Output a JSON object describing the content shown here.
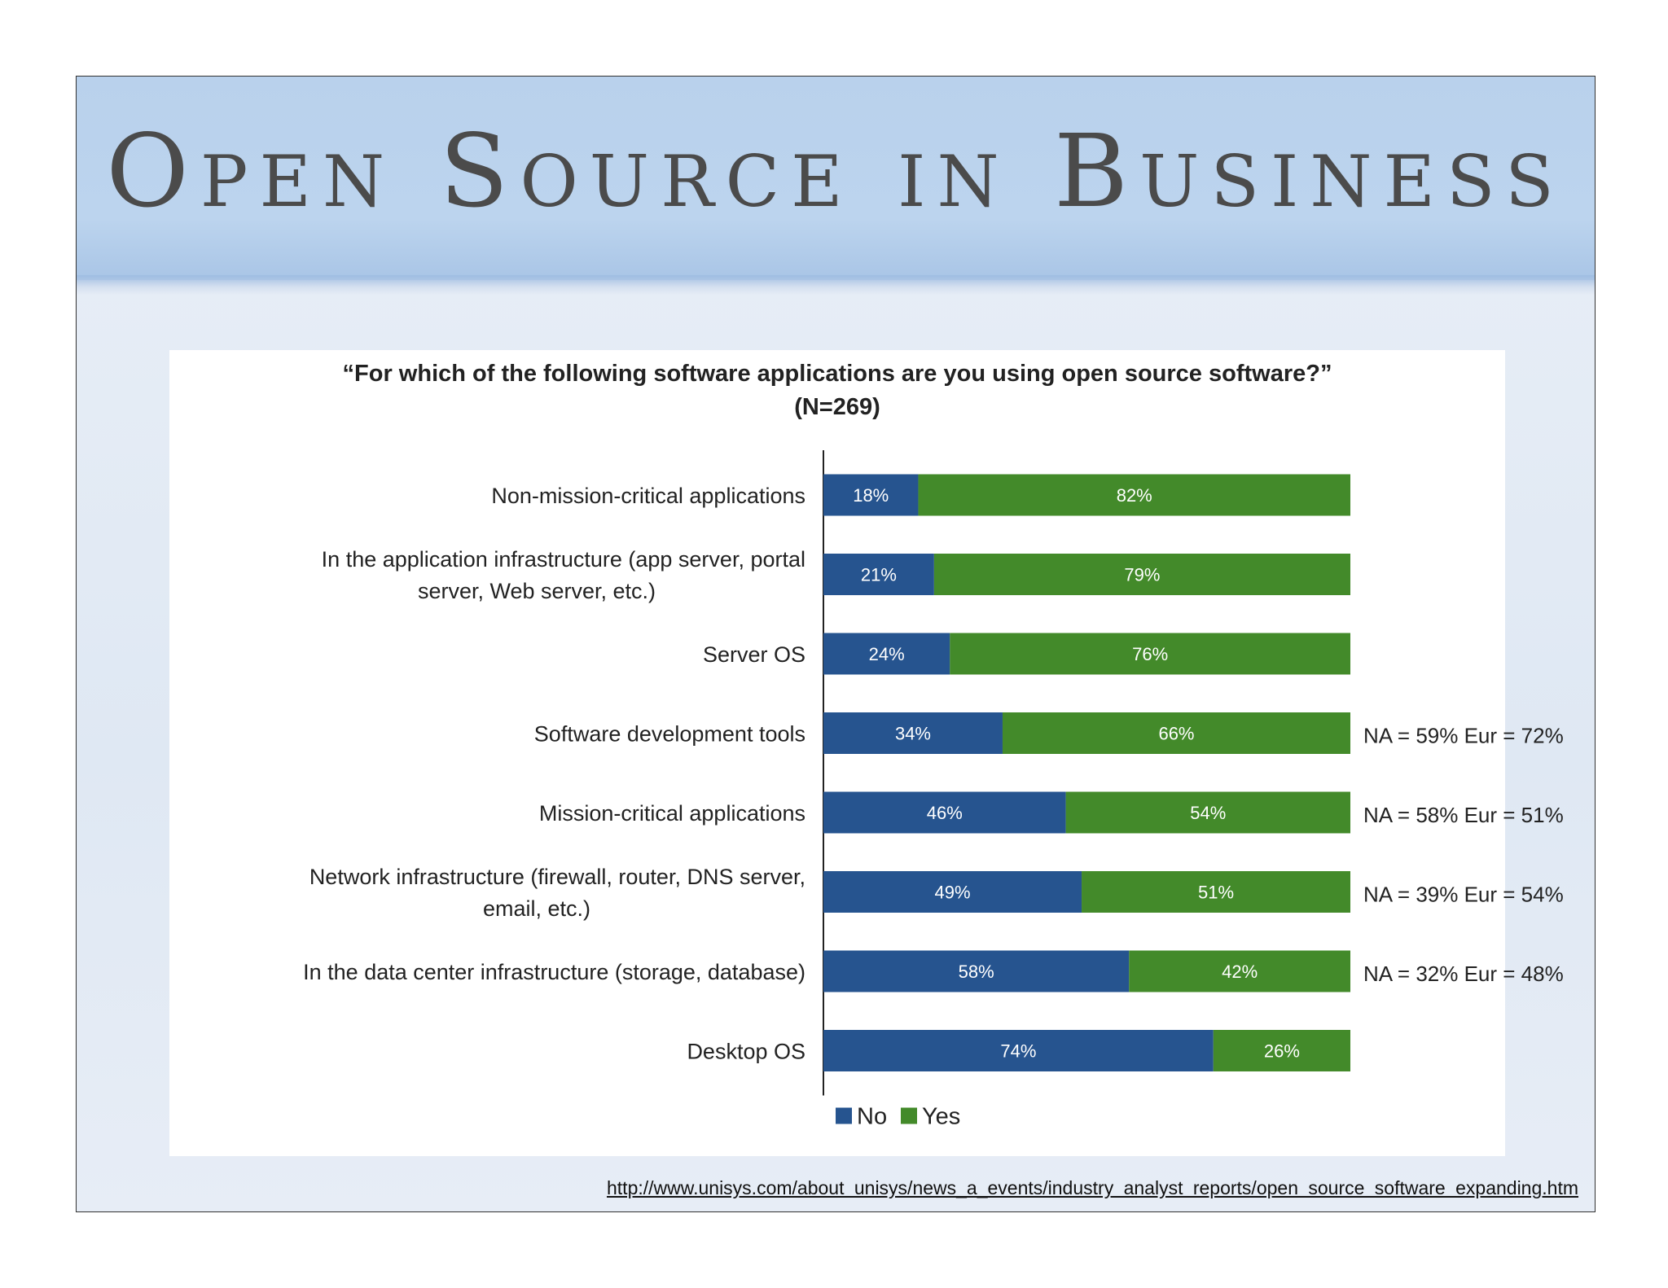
{
  "slide": {
    "title": "Open Source in Business",
    "source_url": "http://www.unisys.com/about__unisys/news_a_events/industry__analyst__reports/open__source__software__expanding.htm",
    "source_url_text": "http://www.unisys.com/about   unisys/news_a_events/industry   analyst   reports/open   source   software   expanding.htm"
  },
  "colors": {
    "no": "#26548f",
    "yes": "#438a2a",
    "axis": "#222222",
    "text": "#222222"
  },
  "chart_data": {
    "type": "bar",
    "orientation": "horizontal",
    "stacked": true,
    "title": "“For which of the following software applications are you using open source software?”",
    "subtitle": "(N=269)",
    "xlim": [
      0,
      100
    ],
    "categories": [
      [
        "Non-mission-critical applications"
      ],
      [
        "In the application infrastructure (app server, portal",
        "server, Web server, etc.)"
      ],
      [
        "Server OS"
      ],
      [
        "Software development tools"
      ],
      [
        "Mission-critical applications"
      ],
      [
        "Network infrastructure (firewall, router, DNS server,",
        "email, etc.)"
      ],
      [
        "In the data center infrastructure (storage, database)"
      ],
      [
        "Desktop OS"
      ]
    ],
    "series": [
      {
        "name": "No",
        "values": [
          18,
          21,
          24,
          34,
          46,
          49,
          58,
          74
        ]
      },
      {
        "name": "Yes",
        "values": [
          82,
          79,
          76,
          66,
          54,
          51,
          42,
          26
        ]
      }
    ],
    "annotations": [
      "",
      "",
      "",
      "NA = 59% Eur = 72%",
      "NA = 58% Eur = 51%",
      "NA = 39% Eur = 54%",
      "NA = 32% Eur = 48%",
      ""
    ],
    "legend": {
      "position": "bottom-center",
      "entries": [
        "No",
        "Yes"
      ]
    }
  }
}
